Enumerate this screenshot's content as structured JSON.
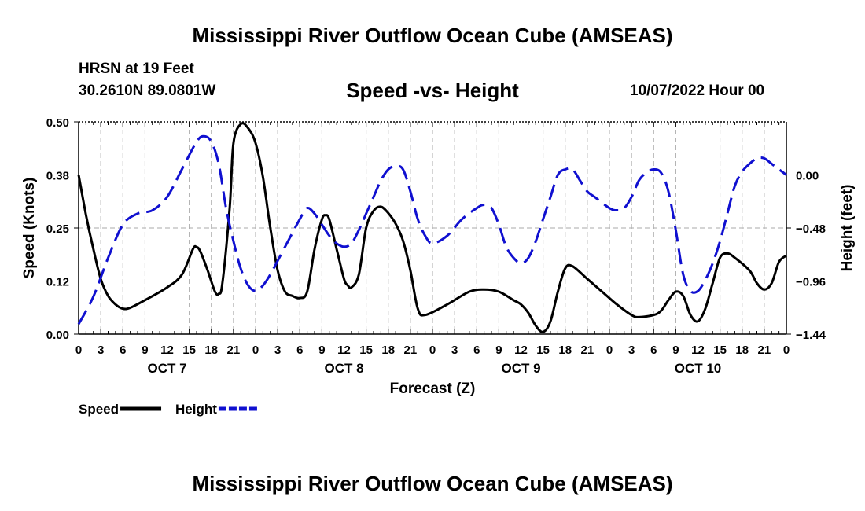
{
  "header": {
    "title": "Mississippi River Outflow Ocean Cube (AMSEAS)",
    "station": "HRSN at 19 Feet",
    "coords": "30.2610N   89.0801W",
    "subtitle": "Speed -vs- Height",
    "timestamp": "10/07/2022 Hour 00"
  },
  "footer": {
    "title": "Mississippi River Outflow Ocean Cube (AMSEAS)"
  },
  "chart_data": {
    "type": "line",
    "title": "Speed -vs- Height",
    "xlabel": "Forecast (Z)",
    "ylabel": "Speed (Knots)",
    "y2label": "Height (feet)",
    "x_unit": "hours from 10/07/2022 00Z",
    "xlim": [
      0,
      96
    ],
    "ylim": [
      0,
      0.5
    ],
    "y2lim": [
      -1.44,
      0.48
    ],
    "x_tick_hours": [
      0,
      3,
      6,
      9,
      12,
      15,
      18,
      21,
      24,
      27,
      30,
      33,
      36,
      39,
      42,
      45,
      48,
      51,
      54,
      57,
      60,
      63,
      66,
      69,
      72,
      75,
      78,
      81,
      84,
      87,
      90,
      93,
      96
    ],
    "x_tick_labels": [
      "0",
      "3",
      "6",
      "9",
      "12",
      "15",
      "18",
      "21",
      "0",
      "3",
      "6",
      "9",
      "12",
      "15",
      "18",
      "21",
      "0",
      "3",
      "6",
      "9",
      "12",
      "15",
      "18",
      "21",
      "0",
      "3",
      "6",
      "9",
      "12",
      "15",
      "18",
      "21",
      "0"
    ],
    "day_labels": [
      {
        "hour": 12,
        "label": "OCT 7"
      },
      {
        "hour": 36,
        "label": "OCT 8"
      },
      {
        "hour": 60,
        "label": "OCT 9"
      },
      {
        "hour": 84,
        "label": "OCT 10"
      }
    ],
    "y_ticks": [
      0,
      0.125,
      0.25,
      0.375,
      0.5
    ],
    "y_tick_labels": [
      "0.00",
      "0.12",
      "0.25",
      "0.38",
      "0.50"
    ],
    "y2_ticks": [
      0,
      -0.48,
      -0.96,
      -1.44
    ],
    "y2_tick_labels": [
      "0.00",
      "−0.48",
      "−0.96",
      "−1.44"
    ],
    "series": [
      {
        "name": "Speed",
        "axis": "left",
        "color": "#000000",
        "dash": "solid",
        "points": [
          [
            0,
            0.375
          ],
          [
            1,
            0.28
          ],
          [
            2,
            0.2
          ],
          [
            3,
            0.13
          ],
          [
            4,
            0.09
          ],
          [
            5,
            0.07
          ],
          [
            6,
            0.06
          ],
          [
            7,
            0.062
          ],
          [
            9,
            0.08
          ],
          [
            12,
            0.11
          ],
          [
            14,
            0.14
          ],
          [
            15.5,
            0.2
          ],
          [
            16,
            0.205
          ],
          [
            16.5,
            0.195
          ],
          [
            17.5,
            0.15
          ],
          [
            18.5,
            0.1
          ],
          [
            19,
            0.095
          ],
          [
            19.5,
            0.12
          ],
          [
            20.5,
            0.3
          ],
          [
            21,
            0.45
          ],
          [
            22,
            0.495
          ],
          [
            23,
            0.485
          ],
          [
            24,
            0.45
          ],
          [
            25,
            0.37
          ],
          [
            26,
            0.25
          ],
          [
            27,
            0.15
          ],
          [
            28,
            0.1
          ],
          [
            29,
            0.09
          ],
          [
            30,
            0.085
          ],
          [
            31,
            0.1
          ],
          [
            32,
            0.2
          ],
          [
            33,
            0.27
          ],
          [
            33.5,
            0.28
          ],
          [
            34,
            0.27
          ],
          [
            35,
            0.2
          ],
          [
            36,
            0.13
          ],
          [
            36.5,
            0.115
          ],
          [
            37,
            0.11
          ],
          [
            38,
            0.14
          ],
          [
            39,
            0.25
          ],
          [
            40,
            0.29
          ],
          [
            41,
            0.3
          ],
          [
            42,
            0.285
          ],
          [
            43,
            0.26
          ],
          [
            44,
            0.22
          ],
          [
            45,
            0.15
          ],
          [
            46,
            0.06
          ],
          [
            47,
            0.045
          ],
          [
            50,
            0.07
          ],
          [
            53,
            0.1
          ],
          [
            55,
            0.105
          ],
          [
            57,
            0.1
          ],
          [
            59,
            0.08
          ],
          [
            60,
            0.07
          ],
          [
            61,
            0.05
          ],
          [
            62,
            0.02
          ],
          [
            63,
            0.005
          ],
          [
            64,
            0.03
          ],
          [
            65,
            0.1
          ],
          [
            66,
            0.155
          ],
          [
            67,
            0.16
          ],
          [
            69,
            0.13
          ],
          [
            71,
            0.1
          ],
          [
            73,
            0.07
          ],
          [
            75,
            0.045
          ],
          [
            76,
            0.04
          ],
          [
            78,
            0.045
          ],
          [
            79,
            0.055
          ],
          [
            80,
            0.08
          ],
          [
            81,
            0.1
          ],
          [
            82,
            0.09
          ],
          [
            83,
            0.045
          ],
          [
            84,
            0.03
          ],
          [
            85,
            0.06
          ],
          [
            86,
            0.12
          ],
          [
            87,
            0.18
          ],
          [
            88,
            0.19
          ],
          [
            89,
            0.18
          ],
          [
            91,
            0.15
          ],
          [
            92,
            0.12
          ],
          [
            93,
            0.105
          ],
          [
            94,
            0.12
          ],
          [
            95,
            0.17
          ],
          [
            96,
            0.185
          ]
        ]
      },
      {
        "name": "Height",
        "axis": "right",
        "color": "#1010d0",
        "dash": "dashed",
        "points": [
          [
            0,
            -1.35
          ],
          [
            2,
            -1.1
          ],
          [
            4,
            -0.75
          ],
          [
            6,
            -0.45
          ],
          [
            8,
            -0.35
          ],
          [
            10,
            -0.32
          ],
          [
            12,
            -0.2
          ],
          [
            14,
            0.05
          ],
          [
            16,
            0.3
          ],
          [
            17,
            0.35
          ],
          [
            18,
            0.3
          ],
          [
            19,
            0.1
          ],
          [
            20,
            -0.3
          ],
          [
            21,
            -0.6
          ],
          [
            22,
            -0.85
          ],
          [
            23,
            -1.0
          ],
          [
            24,
            -1.05
          ],
          [
            25,
            -1.0
          ],
          [
            26,
            -0.9
          ],
          [
            28,
            -0.65
          ],
          [
            30,
            -0.4
          ],
          [
            31,
            -0.3
          ],
          [
            32,
            -0.35
          ],
          [
            33,
            -0.45
          ],
          [
            34,
            -0.55
          ],
          [
            35,
            -0.62
          ],
          [
            36,
            -0.65
          ],
          [
            37,
            -0.62
          ],
          [
            38,
            -0.5
          ],
          [
            39,
            -0.35
          ],
          [
            40,
            -0.2
          ],
          [
            41,
            -0.05
          ],
          [
            42,
            0.05
          ],
          [
            43,
            0.08
          ],
          [
            44,
            0.05
          ],
          [
            45,
            -0.15
          ],
          [
            46,
            -0.4
          ],
          [
            47,
            -0.55
          ],
          [
            48,
            -0.62
          ],
          [
            50,
            -0.55
          ],
          [
            52,
            -0.4
          ],
          [
            54,
            -0.3
          ],
          [
            55,
            -0.27
          ],
          [
            56,
            -0.3
          ],
          [
            57,
            -0.45
          ],
          [
            58,
            -0.65
          ],
          [
            59,
            -0.75
          ],
          [
            60,
            -0.8
          ],
          [
            61,
            -0.75
          ],
          [
            62,
            -0.6
          ],
          [
            63,
            -0.4
          ],
          [
            64,
            -0.2
          ],
          [
            65,
            0.0
          ],
          [
            66,
            0.05
          ],
          [
            67,
            0.05
          ],
          [
            68,
            -0.05
          ],
          [
            69,
            -0.15
          ],
          [
            70,
            -0.2
          ],
          [
            72,
            -0.3
          ],
          [
            73,
            -0.32
          ],
          [
            74,
            -0.3
          ],
          [
            75,
            -0.2
          ],
          [
            76,
            -0.05
          ],
          [
            77,
            0.02
          ],
          [
            78,
            0.05
          ],
          [
            79,
            0.02
          ],
          [
            80,
            -0.15
          ],
          [
            81,
            -0.5
          ],
          [
            82,
            -0.9
          ],
          [
            83,
            -1.05
          ],
          [
            84,
            -1.05
          ],
          [
            85,
            -0.95
          ],
          [
            86,
            -0.8
          ],
          [
            87,
            -0.6
          ],
          [
            88,
            -0.35
          ],
          [
            89,
            -0.1
          ],
          [
            90,
            0.03
          ],
          [
            91,
            0.1
          ],
          [
            92,
            0.15
          ],
          [
            93,
            0.15
          ],
          [
            94,
            0.1
          ],
          [
            95,
            0.05
          ],
          [
            96,
            0.0
          ]
        ]
      }
    ],
    "legend": [
      {
        "label": "Speed",
        "color": "#000000",
        "dash": "solid"
      },
      {
        "label": "Height",
        "color": "#1010d0",
        "dash": "dashed"
      }
    ],
    "legend_position": "bottom-left",
    "grid": true
  }
}
